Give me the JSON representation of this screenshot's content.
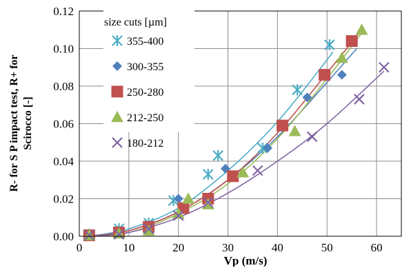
{
  "chart_data": {
    "type": "scatter",
    "xlabel": "Vp (m/s)",
    "ylabel_line1": "R- for S P impact test, R+ for",
    "ylabel_line2": "Scirocco [-]",
    "xlim": [
      0,
      65
    ],
    "ylim": [
      0,
      0.12
    ],
    "x_ticks": [
      "0",
      "10",
      "20",
      "30",
      "40",
      "50",
      "60"
    ],
    "y_ticks": [
      "0.00",
      "0.02",
      "0.04",
      "0.06",
      "0.08",
      "0.10",
      "0.12"
    ],
    "grid": true,
    "legend_title": "size cuts [µm]",
    "legend_position": "top-left",
    "series": [
      {
        "name": "355-400",
        "marker": "asterisk",
        "color": "#4bacc6",
        "x": [
          2,
          8,
          14,
          19,
          26,
          28,
          37,
          44,
          50.5
        ],
        "y": [
          0.001,
          0.004,
          0.007,
          0.019,
          0.033,
          0.043,
          0.047,
          0.078,
          0.102
        ],
        "trend": [
          [
            2,
            0.0
          ],
          [
            10,
            0.004
          ],
          [
            20,
            0.015
          ],
          [
            30,
            0.035
          ],
          [
            40,
            0.061
          ],
          [
            50,
            0.094
          ],
          [
            51,
            0.098
          ]
        ]
      },
      {
        "name": "300-355",
        "marker": "diamond",
        "color": "#4f81bd",
        "x": [
          2,
          8,
          14,
          20,
          29.5,
          38,
          46,
          53
        ],
        "y": [
          0.001,
          0.003,
          0.005,
          0.02,
          0.036,
          0.047,
          0.074,
          0.086
        ],
        "trend": [
          [
            2,
            0.0
          ],
          [
            10,
            0.003
          ],
          [
            20,
            0.013
          ],
          [
            30,
            0.03
          ],
          [
            40,
            0.053
          ],
          [
            50,
            0.082
          ],
          [
            56,
            0.1
          ]
        ]
      },
      {
        "name": "250-280",
        "marker": "square",
        "color": "#c0504d",
        "x": [
          2,
          8,
          14,
          21,
          26,
          31,
          41,
          49.5,
          55
        ],
        "y": [
          0.0005,
          0.002,
          0.005,
          0.015,
          0.02,
          0.032,
          0.059,
          0.086,
          0.104
        ],
        "trend": [
          [
            2,
            0.0
          ],
          [
            10,
            0.003
          ],
          [
            20,
            0.013
          ],
          [
            30,
            0.03
          ],
          [
            40,
            0.055
          ],
          [
            50,
            0.087
          ],
          [
            57,
            0.11
          ]
        ]
      },
      {
        "name": "212-250",
        "marker": "triangle",
        "color": "#9bbb59",
        "x": [
          2,
          8,
          14,
          20,
          22,
          26,
          33,
          43.5,
          53,
          57
        ],
        "y": [
          0.0005,
          0.0015,
          0.003,
          0.012,
          0.02,
          0.017,
          0.034,
          0.056,
          0.095,
          0.11
        ],
        "trend": [
          [
            2,
            0.0
          ],
          [
            10,
            0.002
          ],
          [
            20,
            0.012
          ],
          [
            30,
            0.028
          ],
          [
            40,
            0.052
          ],
          [
            50,
            0.084
          ],
          [
            57.5,
            0.11
          ]
        ]
      },
      {
        "name": "180-212",
        "marker": "x",
        "color": "#8064a2",
        "x": [
          2,
          8,
          14,
          20,
          26,
          36,
          47,
          56.5,
          61.5
        ],
        "y": [
          0.0005,
          0.001,
          0.004,
          0.011,
          0.018,
          0.035,
          0.053,
          0.073,
          0.09
        ],
        "trend": [
          [
            2,
            0.0
          ],
          [
            10,
            0.002
          ],
          [
            20,
            0.01
          ],
          [
            30,
            0.023
          ],
          [
            40,
            0.04
          ],
          [
            50,
            0.06
          ],
          [
            61.5,
            0.088
          ]
        ]
      }
    ]
  }
}
